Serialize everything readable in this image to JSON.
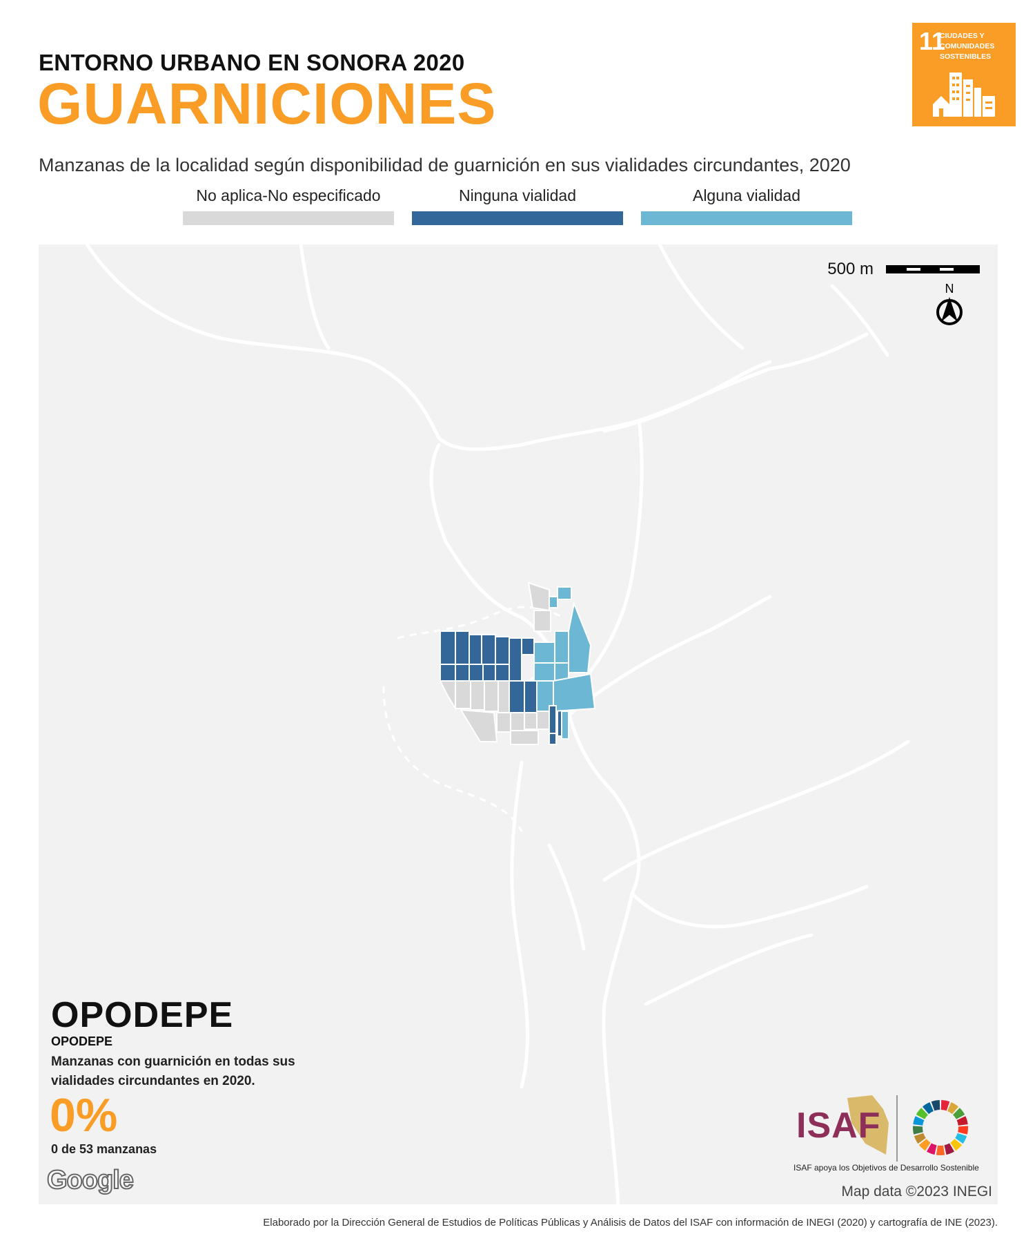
{
  "header": {
    "kicker": "ENTORNO URBANO EN SONORA 2020",
    "title": "GUARNICIONES",
    "subtitle": "Manzanas de la localidad según disponibilidad de guarnición en sus vialidades circundantes, 2020"
  },
  "legend": [
    {
      "label": "No aplica-No especificado",
      "color": "#D9D9D9"
    },
    {
      "label": "Ninguna vialidad",
      "color": "#336699"
    },
    {
      "label": "Alguna vialidad",
      "color": "#6CB8D4"
    }
  ],
  "sdg_badge": {
    "number": "11",
    "text": "CIUDADES Y COMUNIDADES SOSTENIBLES",
    "color": "#F99D26",
    "icon": "city-buildings-icon"
  },
  "map": {
    "scale_label": "500 m",
    "north_label": "N",
    "attribution": "Map data ©2023 INEGI",
    "provider_logo": "Google",
    "background_color": "#F2F2F2",
    "road_color": "#FFFFFF"
  },
  "locality": {
    "name": "OPODEPE",
    "municipality": "OPODEPE",
    "description": "Manzanas con guarnición en todas sus vialidades circundantes en 2020.",
    "percent": "0%",
    "count_text": "0 de 53 manzanas"
  },
  "isaf": {
    "logo_text": "ISAF",
    "caption": "ISAF apoya los Objetivos de Desarrollo Sostenible",
    "color": "#8E2F5A"
  },
  "footer": "Elaborado por la Dirección General de Estudios de Políticas Públicas y Análisis de Datos del ISAF con información de INEGI (2020) y cartografía de INE (2023)."
}
